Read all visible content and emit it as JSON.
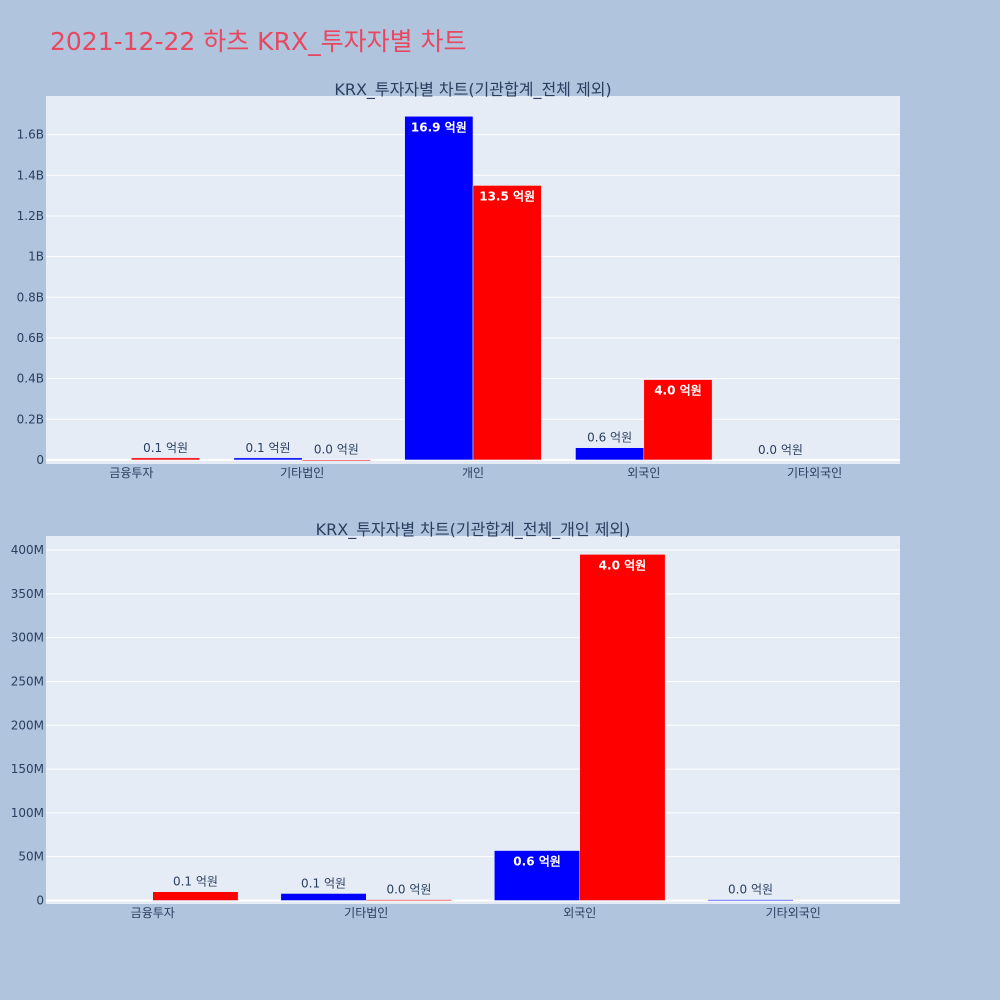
{
  "title": "2021-12-22 하츠 KRX_투자자별 차트",
  "colors": {
    "background": "#b0c4de",
    "plot_bg": "#e5ecf6",
    "title": "#e8475f",
    "series_a": "#0000ff",
    "series_b": "#ff0000"
  },
  "chart_data": [
    {
      "type": "bar",
      "title": "KRX_투자자별 차트(기관합계_전체 제외)",
      "categories": [
        "금융투자",
        "기타법인",
        "개인",
        "외국인",
        "기타외국인"
      ],
      "series": [
        {
          "color": "#0000ff",
          "values": [
            0,
            10000000,
            1690000000,
            60000000,
            0
          ],
          "labels": [
            "",
            "0.1 억원",
            "16.9 억원",
            "0.6 억원",
            "0.0 억원"
          ]
        },
        {
          "color": "#ff0000",
          "values": [
            10000000,
            1000000,
            1350000000,
            395000000,
            0
          ],
          "labels": [
            "0.1 억원",
            "0.0 억원",
            "13.5 억원",
            "4.0 억원",
            ""
          ]
        }
      ],
      "ylim": [
        -20000000,
        1790000000
      ],
      "yticks": [
        0,
        200000000,
        400000000,
        600000000,
        800000000,
        1000000000,
        1200000000,
        1400000000,
        1600000000
      ],
      "ytick_labels": [
        "0",
        "0.2B",
        "0.4B",
        "0.6B",
        "0.8B",
        "1B",
        "1.2B",
        "1.4B",
        "1.6B"
      ],
      "grid": true
    },
    {
      "type": "bar",
      "title": "KRX_투자자별 차트(기관합계_전체_개인 제외)",
      "categories": [
        "금융투자",
        "기타법인",
        "외국인",
        "기타외국인"
      ],
      "series": [
        {
          "color": "#0000ff",
          "values": [
            0,
            8000000,
            57000000,
            1000000
          ],
          "labels": [
            "",
            "0.1 억원",
            "0.6 억원",
            "0.0 억원"
          ]
        },
        {
          "color": "#ff0000",
          "values": [
            10000000,
            1000000,
            395000000,
            0
          ],
          "labels": [
            "0.1 억원",
            "0.0 억원",
            "4.0 억원",
            ""
          ]
        }
      ],
      "ylim": [
        -4000000,
        416000000
      ],
      "yticks": [
        0,
        50000000,
        100000000,
        150000000,
        200000000,
        250000000,
        300000000,
        350000000,
        400000000
      ],
      "ytick_labels": [
        "0",
        "50M",
        "100M",
        "150M",
        "200M",
        "250M",
        "300M",
        "350M",
        "400M"
      ],
      "grid": true
    }
  ]
}
